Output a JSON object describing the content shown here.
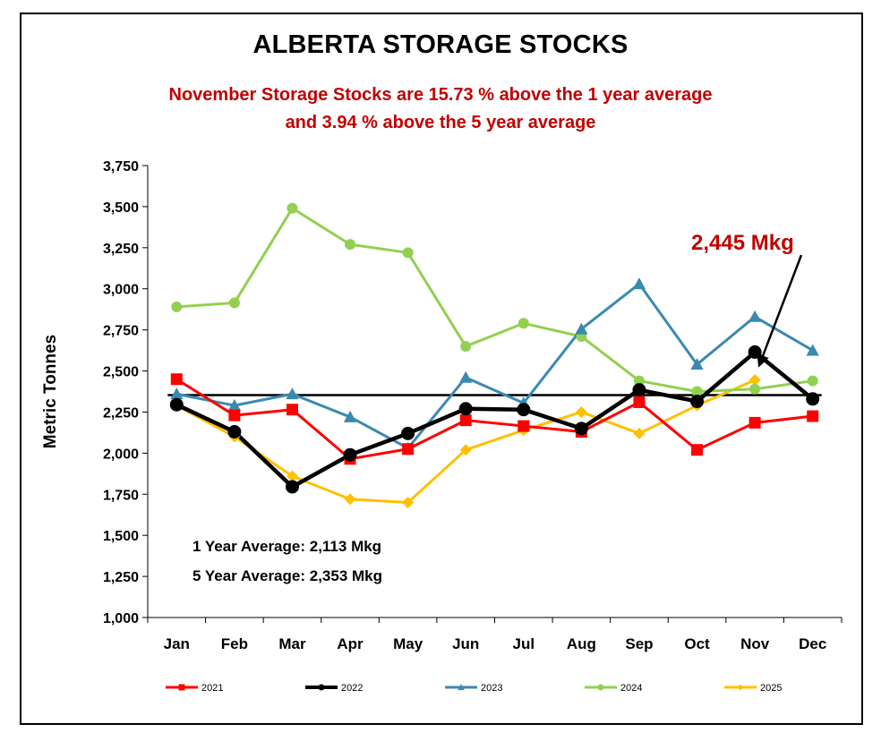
{
  "title": "ALBERTA STORAGE STOCKS",
  "subtitle_line1": "November Storage Stocks are 15.73 % above the 1 year average",
  "subtitle_line2": "and 3.94 % above the 5 year average",
  "chart_data": {
    "type": "line",
    "ylabel": "Metric Tonnes",
    "xlabel": "",
    "ylim": [
      1000,
      3750
    ],
    "yticks": [
      1000,
      1250,
      1500,
      1750,
      2000,
      2250,
      2500,
      2750,
      3000,
      3250,
      3500,
      3750
    ],
    "ytick_labels": [
      "1,000",
      "1,250",
      "1,500",
      "1,750",
      "2,000",
      "2,250",
      "2,500",
      "2,750",
      "3,000",
      "3,250",
      "3,500",
      "3,750"
    ],
    "categories": [
      "Jan",
      "Feb",
      "Mar",
      "Apr",
      "May",
      "Jun",
      "Jul",
      "Aug",
      "Sep",
      "Oct",
      "Nov",
      "Dec"
    ],
    "series": [
      {
        "name": "2021",
        "color": "#ff0000",
        "marker": "square",
        "values": [
          2450,
          2230,
          2265,
          1965,
          2025,
          2200,
          2165,
          2130,
          2310,
          2020,
          2185,
          2225
        ]
      },
      {
        "name": "2022",
        "color": "#000000",
        "marker": "circle",
        "values": [
          2295,
          2130,
          1795,
          1990,
          2120,
          2270,
          2265,
          2150,
          2385,
          2315,
          2615,
          2330
        ]
      },
      {
        "name": "2023",
        "color": "#3a8ab0",
        "marker": "triangle",
        "values": [
          2360,
          2290,
          2360,
          2220,
          2030,
          2460,
          2305,
          2755,
          3030,
          2540,
          2830,
          2625
        ]
      },
      {
        "name": "2024",
        "color": "#92d050",
        "marker": "circle",
        "values": [
          2890,
          2915,
          3490,
          3270,
          3220,
          2650,
          2790,
          2710,
          2440,
          2375,
          2390,
          2440
        ]
      },
      {
        "name": "2025",
        "color": "#ffc000",
        "marker": "diamond",
        "values": [
          2290,
          2100,
          1860,
          1720,
          1700,
          2020,
          2140,
          2250,
          2120,
          2290,
          2445,
          null
        ]
      }
    ],
    "average_line": {
      "value": 2353,
      "color": "#000000"
    },
    "annotations": {
      "callout": "2,445 Mkg",
      "callout_target": {
        "x": "Nov",
        "y": 2445
      },
      "avg1": "1 Year Average:  2,113 Mkg",
      "avg5": "5 Year Average:  2,353 Mkg"
    },
    "legend_position": "bottom",
    "grid": false
  }
}
